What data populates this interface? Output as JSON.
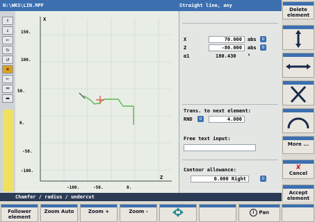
{
  "title": {
    "path": "N:\\WKS\\LIN.MPF",
    "element": "Straight line, any"
  },
  "graph": {
    "axis_y_label": "X",
    "axis_x_label": "Z",
    "y_ticks": [
      "150.",
      "100.",
      "50.",
      "0.",
      "-50.",
      "-100."
    ],
    "x_ticks": [
      "-100.",
      "-50.",
      "0."
    ],
    "zero_label": "0.",
    "hundred_label": "100.",
    "contour_color": "#58b848",
    "cursor_color": "#e04040"
  },
  "params": {
    "x": {
      "label": "X",
      "value": "70.000",
      "unit": "abs",
      "toggle": "U"
    },
    "z": {
      "label": "Z",
      "value": "-80.000",
      "unit": "abs",
      "toggle": "U"
    },
    "a": {
      "label": "α1",
      "value": "180.430",
      "unit": "°"
    },
    "trans_label": "Trans. to next element:",
    "trans_type": "RND",
    "trans_toggle": "U",
    "trans_value": "4.000",
    "free_text_label": "Free text input:",
    "free_text_value": "",
    "allowance_label": "Contour allowance:",
    "allowance_value": "0.000 Right",
    "allowance_toggle": "U"
  },
  "right_softkeys": [
    {
      "label": "Delete element"
    },
    {
      "label": ""
    },
    {
      "label": ""
    },
    {
      "label": ""
    },
    {
      "label": ""
    },
    {
      "label": "More ..."
    },
    {
      "label": "Cancel"
    },
    {
      "label": "Accept element"
    }
  ],
  "status": "Chamfer / radius / undercut",
  "bottom_softkeys": [
    {
      "label": "Follower element"
    },
    {
      "label": "Zoom Auto"
    },
    {
      "label": "Zoom +"
    },
    {
      "label": "Zoom -"
    },
    {
      "label": ""
    },
    {
      "label": ""
    },
    {
      "label": "Pan"
    },
    {
      "label": ""
    }
  ],
  "colors": {
    "accent": "#3b6fb0",
    "graph_bg": "#e8eee6",
    "highlight": "#e0a020",
    "yellow": "#f0e060"
  }
}
